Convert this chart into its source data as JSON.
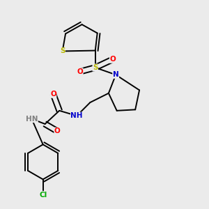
{
  "background_color": "#ebebeb",
  "fig_width": 3.0,
  "fig_height": 3.0,
  "dpi": 100,
  "atom_colors": {
    "S": "#b8b800",
    "N": "#0000cc",
    "O": "#ff0000",
    "Cl": "#00aa00",
    "C": "#000000",
    "H": "#808080"
  },
  "bond_color": "#000000",
  "line_width": 1.4,
  "font_size": 7.5
}
